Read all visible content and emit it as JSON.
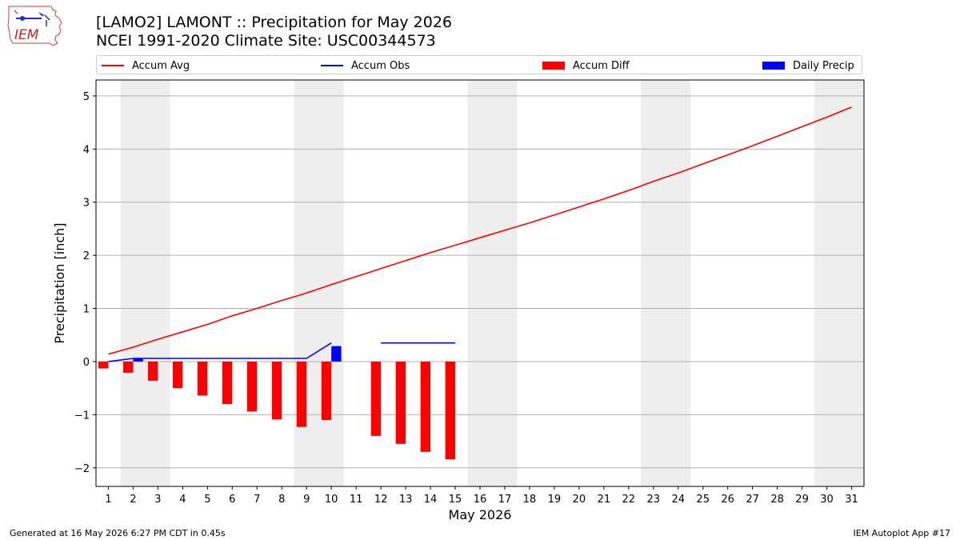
{
  "logo": {
    "text": "IEM",
    "icon": "iem-iowa-logo-icon"
  },
  "header": {
    "title": "[LAMO2] LAMONT :: Precipitation for May 2026",
    "subtitle": "NCEI 1991-2020 Climate Site: USC00344573"
  },
  "legend": {
    "placement": "top, full width",
    "items": [
      {
        "label": "Accum Avg",
        "kind": "line",
        "color": "#ff0000"
      },
      {
        "label": "Accum Obs",
        "kind": "line",
        "color": "#0000ff"
      },
      {
        "label": "Accum Diff",
        "kind": "bar",
        "color": "#ff0000"
      },
      {
        "label": "Daily Precip",
        "kind": "bar",
        "color": "#0000ff"
      }
    ]
  },
  "footer": {
    "left": "Generated at 16 May 2026 6:27 PM CDT in 0.45s",
    "right": "IEM Autoplot App #17"
  },
  "chart_data": {
    "type": "bar",
    "title": "[LAMO2] LAMONT :: Precipitation for May 2026",
    "subtitle": "NCEI 1991-2020 Climate Site: USC00344573",
    "xlabel": "May 2026",
    "ylabel": "Precipitation [inch]",
    "x": [
      1,
      2,
      3,
      4,
      5,
      6,
      7,
      8,
      9,
      10,
      11,
      12,
      13,
      14,
      15,
      16,
      17,
      18,
      19,
      20,
      21,
      22,
      23,
      24,
      25,
      26,
      27,
      28,
      29,
      30,
      31
    ],
    "x_ticks": [
      "1",
      "2",
      "3",
      "4",
      "5",
      "6",
      "7",
      "8",
      "9",
      "10",
      "11",
      "12",
      "13",
      "14",
      "15",
      "16",
      "17",
      "18",
      "19",
      "20",
      "21",
      "22",
      "23",
      "24",
      "25",
      "26",
      "27",
      "28",
      "29",
      "30",
      "31"
    ],
    "ylim": [
      -2.35,
      5.3
    ],
    "y_ticks": [
      -2,
      -1,
      0,
      1,
      2,
      3,
      4,
      5
    ],
    "y_tick_labels": [
      "−2",
      "−1",
      "0",
      "1",
      "2",
      "3",
      "4",
      "5"
    ],
    "grid": "horizontal",
    "weekend_shading": [
      [
        2,
        3
      ],
      [
        9,
        10
      ],
      [
        16,
        17
      ],
      [
        23,
        24
      ],
      [
        30,
        31
      ]
    ],
    "weekend_color": "#eeeeee",
    "series": [
      {
        "name": "Accum Avg",
        "kind": "line",
        "color": "#ff0000",
        "x": [
          1,
          2,
          3,
          4,
          5,
          6,
          7,
          8,
          9,
          10,
          11,
          12,
          13,
          14,
          15,
          16,
          17,
          18,
          19,
          20,
          21,
          22,
          23,
          24,
          25,
          26,
          27,
          28,
          29,
          30,
          31
        ],
        "values": [
          0.14,
          0.27,
          0.42,
          0.56,
          0.7,
          0.86,
          1.0,
          1.15,
          1.29,
          1.45,
          1.6,
          1.75,
          1.9,
          2.05,
          2.19,
          2.33,
          2.47,
          2.61,
          2.76,
          2.91,
          3.06,
          3.22,
          3.39,
          3.55,
          3.72,
          3.89,
          4.06,
          4.24,
          4.42,
          4.6,
          4.79
        ]
      },
      {
        "name": "Accum Obs",
        "kind": "line",
        "color": "#0000ff",
        "x": [
          1,
          2,
          3,
          4,
          5,
          6,
          7,
          8,
          9,
          10,
          11,
          12,
          13,
          14,
          15
        ],
        "values": [
          0.0,
          0.06,
          0.06,
          0.06,
          0.06,
          0.06,
          0.06,
          0.06,
          0.06,
          0.35,
          null,
          0.35,
          0.35,
          0.35,
          0.35
        ]
      },
      {
        "name": "Accum Diff",
        "kind": "bar",
        "color": "#ff0000",
        "offset": "left",
        "x": [
          1,
          2,
          3,
          4,
          5,
          6,
          7,
          8,
          9,
          10,
          12,
          13,
          14,
          15
        ],
        "values": [
          -0.13,
          -0.21,
          -0.36,
          -0.5,
          -0.64,
          -0.8,
          -0.94,
          -1.09,
          -1.23,
          -1.1,
          -1.4,
          -1.55,
          -1.7,
          -1.84
        ]
      },
      {
        "name": "Daily Precip",
        "kind": "bar",
        "color": "#0000ff",
        "offset": "right",
        "x": [
          2,
          10
        ],
        "values": [
          0.06,
          0.29
        ]
      }
    ]
  }
}
